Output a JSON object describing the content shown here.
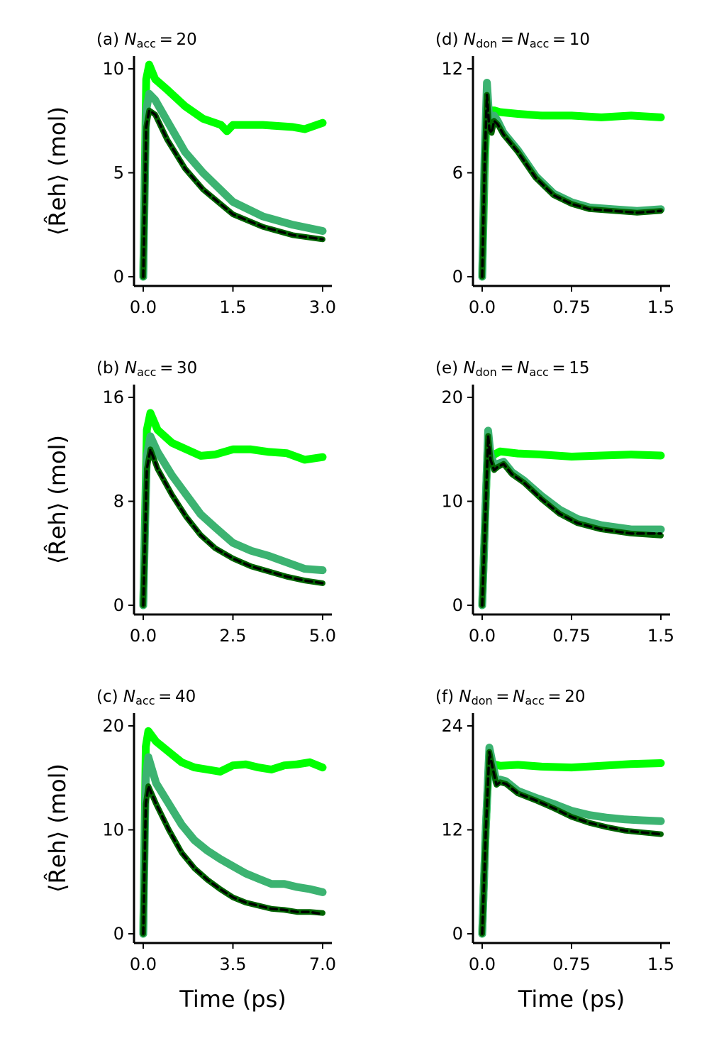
{
  "colors": {
    "lime": "#00ff00",
    "medium": "#3cb371",
    "dark": "#006400",
    "dashed": "#000000"
  },
  "chart_data": [
    {
      "type": "line",
      "title_prefix": "(a)",
      "title_math": "N_acc = 20",
      "xlabel": "",
      "ylabel": "⟨R̂eh⟩ (mol)",
      "xlim": [
        0,
        3.0
      ],
      "ylim": [
        0,
        10
      ],
      "xticks": [
        "0.0",
        "1.5",
        "3.0"
      ],
      "yticks": [
        "0",
        "5",
        "10"
      ],
      "series": [
        {
          "name": "lime",
          "x": [
            0,
            0.05,
            0.1,
            0.2,
            0.4,
            0.7,
            1.0,
            1.3,
            1.4,
            1.5,
            2.0,
            2.5,
            2.7,
            3.0
          ],
          "y": [
            0,
            9.5,
            10.2,
            9.5,
            9.0,
            8.2,
            7.6,
            7.3,
            7.0,
            7.3,
            7.3,
            7.2,
            7.1,
            7.4
          ]
        },
        {
          "name": "medium",
          "x": [
            0,
            0.05,
            0.1,
            0.2,
            0.4,
            0.7,
            1.0,
            1.5,
            2.0,
            2.5,
            3.0
          ],
          "y": [
            0,
            8.0,
            8.8,
            8.5,
            7.5,
            6.0,
            5.0,
            3.6,
            2.9,
            2.5,
            2.2
          ]
        },
        {
          "name": "dark",
          "x": [
            0,
            0.05,
            0.1,
            0.2,
            0.4,
            0.7,
            1.0,
            1.5,
            2.0,
            2.5,
            3.0
          ],
          "y": [
            0,
            7.2,
            8.0,
            7.8,
            6.6,
            5.2,
            4.2,
            3.0,
            2.4,
            2.0,
            1.8
          ]
        },
        {
          "name": "dashed",
          "x": [
            0,
            0.05,
            0.1,
            0.2,
            0.4,
            0.7,
            1.0,
            1.5,
            2.0,
            2.5,
            3.0
          ],
          "y": [
            0,
            7.2,
            8.0,
            7.8,
            6.6,
            5.2,
            4.2,
            3.0,
            2.4,
            2.0,
            1.8
          ]
        }
      ]
    },
    {
      "type": "line",
      "title_prefix": "(b)",
      "title_math": "N_acc = 30",
      "xlabel": "",
      "ylabel": "⟨R̂eh⟩ (mol)",
      "xlim": [
        0,
        5.0
      ],
      "ylim": [
        0,
        16
      ],
      "xticks": [
        "0.0",
        "2.5",
        "5.0"
      ],
      "yticks": [
        "0",
        "8",
        "16"
      ],
      "series": [
        {
          "name": "lime",
          "x": [
            0,
            0.1,
            0.2,
            0.4,
            0.8,
            1.2,
            1.6,
            2.0,
            2.5,
            3.0,
            3.5,
            4.0,
            4.5,
            5.0
          ],
          "y": [
            0,
            13.5,
            14.8,
            13.5,
            12.5,
            12.0,
            11.5,
            11.6,
            12.0,
            12.0,
            11.8,
            11.7,
            11.2,
            11.4
          ]
        },
        {
          "name": "medium",
          "x": [
            0,
            0.1,
            0.2,
            0.4,
            0.8,
            1.2,
            1.6,
            2.0,
            2.5,
            3.0,
            3.5,
            4.0,
            4.5,
            5.0
          ],
          "y": [
            0,
            11.5,
            13.0,
            11.8,
            10.0,
            8.5,
            7.0,
            6.0,
            4.8,
            4.2,
            3.8,
            3.3,
            2.8,
            2.7
          ]
        },
        {
          "name": "dark",
          "x": [
            0,
            0.1,
            0.2,
            0.4,
            0.8,
            1.2,
            1.6,
            2.0,
            2.5,
            3.0,
            3.5,
            4.0,
            4.5,
            5.0
          ],
          "y": [
            0,
            10.5,
            12.0,
            10.5,
            8.5,
            6.8,
            5.4,
            4.4,
            3.6,
            3.0,
            2.6,
            2.2,
            1.9,
            1.7
          ]
        },
        {
          "name": "dashed",
          "x": [
            0,
            0.1,
            0.2,
            0.4,
            0.8,
            1.2,
            1.6,
            2.0,
            2.5,
            3.0,
            3.5,
            4.0,
            4.5,
            5.0
          ],
          "y": [
            0,
            10.5,
            12.0,
            10.5,
            8.5,
            6.8,
            5.4,
            4.4,
            3.6,
            3.0,
            2.6,
            2.2,
            1.9,
            1.7
          ]
        }
      ]
    },
    {
      "type": "line",
      "title_prefix": "(c)",
      "title_math": "N_acc = 40",
      "xlabel": "Time (ps)",
      "ylabel": "⟨R̂eh⟩ (mol)",
      "xlim": [
        0,
        7.0
      ],
      "ylim": [
        0,
        20
      ],
      "xticks": [
        "0.0",
        "3.5",
        "7.0"
      ],
      "yticks": [
        "0",
        "10",
        "20"
      ],
      "series": [
        {
          "name": "lime",
          "x": [
            0,
            0.1,
            0.2,
            0.5,
            1.0,
            1.5,
            2.0,
            2.5,
            3.0,
            3.5,
            4.0,
            4.5,
            5.0,
            5.5,
            6.0,
            6.5,
            7.0
          ],
          "y": [
            0,
            18.0,
            19.5,
            18.5,
            17.5,
            16.5,
            16.0,
            15.8,
            15.6,
            16.2,
            16.3,
            16.0,
            15.8,
            16.2,
            16.3,
            16.5,
            16.0
          ]
        },
        {
          "name": "medium",
          "x": [
            0,
            0.1,
            0.2,
            0.5,
            1.0,
            1.5,
            2.0,
            2.5,
            3.0,
            3.5,
            4.0,
            4.5,
            5.0,
            5.5,
            6.0,
            6.5,
            7.0
          ],
          "y": [
            0,
            15.0,
            17.0,
            14.5,
            12.5,
            10.5,
            9.0,
            8.0,
            7.2,
            6.5,
            5.8,
            5.3,
            4.8,
            4.8,
            4.5,
            4.3,
            4.0
          ]
        },
        {
          "name": "dark",
          "x": [
            0,
            0.1,
            0.2,
            0.5,
            1.0,
            1.5,
            2.0,
            2.5,
            3.0,
            3.5,
            4.0,
            4.5,
            5.0,
            5.5,
            6.0,
            6.5,
            7.0
          ],
          "y": [
            0,
            12.5,
            14.2,
            12.5,
            10.0,
            7.8,
            6.3,
            5.2,
            4.3,
            3.5,
            3.0,
            2.7,
            2.4,
            2.3,
            2.1,
            2.1,
            2.0
          ]
        },
        {
          "name": "dashed",
          "x": [
            0,
            0.1,
            0.2,
            0.5,
            1.0,
            1.5,
            2.0,
            2.5,
            3.0,
            3.5,
            4.0,
            4.5,
            5.0,
            5.5,
            6.0,
            6.5,
            7.0
          ],
          "y": [
            0,
            12.5,
            14.2,
            12.5,
            10.0,
            7.8,
            6.3,
            5.2,
            4.3,
            3.5,
            3.0,
            2.7,
            2.4,
            2.3,
            2.1,
            2.1,
            1.9
          ]
        }
      ]
    },
    {
      "type": "line",
      "title_prefix": "(d)",
      "title_math": "N_don = N_acc = 10",
      "xlabel": "",
      "ylabel": "",
      "xlim": [
        0,
        1.5
      ],
      "ylim": [
        0,
        12
      ],
      "xticks": [
        "0.0",
        "0.75",
        "1.5"
      ],
      "yticks": [
        "0",
        "6",
        "12"
      ],
      "series": [
        {
          "name": "lime",
          "x": [
            0,
            0.02,
            0.04,
            0.06,
            0.08,
            0.1,
            0.15,
            0.3,
            0.5,
            0.75,
            1.0,
            1.25,
            1.5
          ],
          "y": [
            0,
            6.0,
            10.0,
            8.5,
            9.6,
            9.6,
            9.5,
            9.4,
            9.3,
            9.3,
            9.2,
            9.3,
            9.2
          ]
        },
        {
          "name": "medium",
          "x": [
            0,
            0.02,
            0.04,
            0.06,
            0.08,
            0.1,
            0.13,
            0.18,
            0.3,
            0.45,
            0.6,
            0.75,
            0.9,
            1.1,
            1.3,
            1.5
          ],
          "y": [
            0,
            7.0,
            11.2,
            9.0,
            8.6,
            9.3,
            9.0,
            8.3,
            7.3,
            5.8,
            4.8,
            4.3,
            4.0,
            3.9,
            3.8,
            3.9
          ]
        },
        {
          "name": "dark",
          "x": [
            0,
            0.02,
            0.04,
            0.06,
            0.08,
            0.1,
            0.13,
            0.18,
            0.3,
            0.45,
            0.6,
            0.75,
            0.9,
            1.1,
            1.3,
            1.5
          ],
          "y": [
            0,
            6.5,
            10.5,
            8.5,
            8.3,
            9.0,
            8.8,
            8.2,
            7.2,
            5.7,
            4.7,
            4.2,
            3.9,
            3.8,
            3.7,
            3.8
          ]
        },
        {
          "name": "dashed",
          "x": [
            0,
            0.02,
            0.04,
            0.06,
            0.08,
            0.1,
            0.13,
            0.18,
            0.3,
            0.45,
            0.6,
            0.75,
            0.9,
            1.1,
            1.3,
            1.5
          ],
          "y": [
            0,
            6.5,
            10.5,
            8.5,
            8.3,
            9.0,
            8.8,
            8.2,
            7.2,
            5.7,
            4.7,
            4.2,
            3.9,
            3.8,
            3.7,
            3.8
          ]
        }
      ]
    },
    {
      "type": "line",
      "title_prefix": "(e)",
      "title_math": "N_don = N_acc = 15",
      "xlabel": "",
      "ylabel": "",
      "xlim": [
        0,
        1.5
      ],
      "ylim": [
        0,
        20
      ],
      "xticks": [
        "0.0",
        "0.75",
        "1.5"
      ],
      "yticks": [
        "0",
        "10",
        "20"
      ],
      "series": [
        {
          "name": "lime",
          "x": [
            0,
            0.03,
            0.05,
            0.07,
            0.1,
            0.15,
            0.3,
            0.5,
            0.75,
            1.0,
            1.25,
            1.5
          ],
          "y": [
            0,
            10.0,
            16.5,
            14.0,
            14.5,
            14.8,
            14.6,
            14.5,
            14.3,
            14.4,
            14.5,
            14.4
          ]
        },
        {
          "name": "medium",
          "x": [
            0,
            0.03,
            0.05,
            0.07,
            0.1,
            0.13,
            0.18,
            0.25,
            0.35,
            0.5,
            0.65,
            0.8,
            1.0,
            1.25,
            1.5
          ],
          "y": [
            0,
            10.0,
            16.8,
            14.5,
            13.5,
            13.6,
            13.8,
            12.8,
            12.0,
            10.5,
            9.2,
            8.3,
            7.7,
            7.3,
            7.3
          ]
        },
        {
          "name": "dark",
          "x": [
            0,
            0.03,
            0.05,
            0.07,
            0.1,
            0.13,
            0.18,
            0.25,
            0.35,
            0.5,
            0.65,
            0.8,
            1.0,
            1.25,
            1.5
          ],
          "y": [
            0,
            9.5,
            16.3,
            14.0,
            13.0,
            13.3,
            13.6,
            12.6,
            11.8,
            10.2,
            8.8,
            7.9,
            7.3,
            6.9,
            6.7
          ]
        },
        {
          "name": "dashed",
          "x": [
            0,
            0.03,
            0.05,
            0.07,
            0.1,
            0.13,
            0.18,
            0.25,
            0.35,
            0.5,
            0.65,
            0.8,
            1.0,
            1.25,
            1.5
          ],
          "y": [
            0,
            9.5,
            16.3,
            14.0,
            13.0,
            13.3,
            13.6,
            12.6,
            11.8,
            10.2,
            8.8,
            7.9,
            7.3,
            6.9,
            6.9
          ]
        }
      ]
    },
    {
      "type": "line",
      "title_prefix": "(f)",
      "title_math": "N_don = N_acc = 20",
      "xlabel": "Time (ps)",
      "ylabel": "",
      "xlim": [
        0,
        1.5
      ],
      "ylim": [
        0,
        24
      ],
      "xticks": [
        "0.0",
        "0.75",
        "1.5"
      ],
      "yticks": [
        "0",
        "12",
        "24"
      ],
      "series": [
        {
          "name": "lime",
          "x": [
            0,
            0.03,
            0.06,
            0.09,
            0.12,
            0.15,
            0.3,
            0.5,
            0.75,
            1.0,
            1.25,
            1.5
          ],
          "y": [
            0,
            12.0,
            21.0,
            19.0,
            19.5,
            19.4,
            19.5,
            19.3,
            19.2,
            19.4,
            19.6,
            19.7
          ]
        },
        {
          "name": "medium",
          "x": [
            0,
            0.03,
            0.06,
            0.09,
            0.12,
            0.15,
            0.2,
            0.3,
            0.45,
            0.6,
            0.75,
            0.9,
            1.05,
            1.2,
            1.35,
            1.5
          ],
          "y": [
            0,
            12.0,
            21.5,
            19.5,
            17.5,
            17.8,
            17.6,
            16.5,
            15.7,
            15.0,
            14.2,
            13.7,
            13.4,
            13.2,
            13.1,
            13.0
          ]
        },
        {
          "name": "dark",
          "x": [
            0,
            0.03,
            0.06,
            0.09,
            0.12,
            0.15,
            0.2,
            0.3,
            0.45,
            0.6,
            0.75,
            0.9,
            1.05,
            1.2,
            1.35,
            1.5
          ],
          "y": [
            0,
            11.5,
            21.0,
            19.0,
            17.2,
            17.5,
            17.3,
            16.2,
            15.4,
            14.5,
            13.5,
            12.8,
            12.3,
            11.9,
            11.7,
            11.5
          ]
        },
        {
          "name": "dashed",
          "x": [
            0,
            0.03,
            0.06,
            0.09,
            0.12,
            0.15,
            0.2,
            0.3,
            0.45,
            0.6,
            0.75,
            0.9,
            1.05,
            1.2,
            1.35,
            1.5
          ],
          "y": [
            0,
            11.5,
            21.0,
            19.0,
            17.2,
            17.5,
            17.3,
            16.2,
            15.4,
            14.5,
            13.5,
            12.8,
            12.3,
            11.9,
            11.7,
            11.5
          ]
        }
      ]
    }
  ]
}
